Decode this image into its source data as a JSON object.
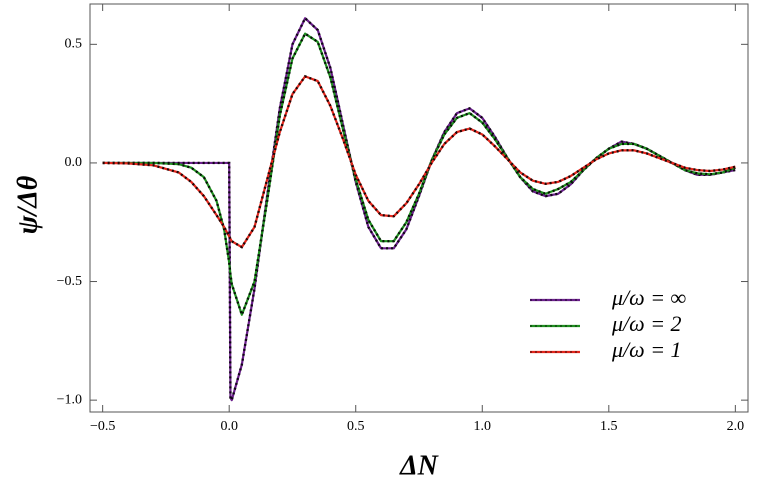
{
  "chart_data": {
    "type": "line",
    "xlabel": "ΔN",
    "ylabel": "ψ/Δθ",
    "xlim": [
      -0.55,
      2.05
    ],
    "ylim": [
      -1.05,
      0.67
    ],
    "xticks": [
      {
        "value": -0.5,
        "label": "−0.5"
      },
      {
        "value": 0,
        "label": "0.0"
      },
      {
        "value": 0.5,
        "label": "0.5"
      },
      {
        "value": 1,
        "label": "1.0"
      },
      {
        "value": 1.5,
        "label": "1.5"
      },
      {
        "value": 2,
        "label": "2.0"
      }
    ],
    "yticks": [
      {
        "value": -1,
        "label": "−1.0"
      },
      {
        "value": -0.5,
        "label": "−0.5"
      },
      {
        "value": 0,
        "label": "0.0"
      },
      {
        "value": 0.5,
        "label": "0.5"
      }
    ],
    "legend_position": "lower right",
    "overlay_dashed": true,
    "x": [
      -0.5,
      -0.4,
      -0.3,
      -0.2,
      -0.15,
      -0.1,
      -0.05,
      -0.02,
      0,
      0.005,
      0.01,
      0.05,
      0.1,
      0.15,
      0.2,
      0.25,
      0.3,
      0.35,
      0.4,
      0.45,
      0.5,
      0.55,
      0.6,
      0.65,
      0.7,
      0.75,
      0.8,
      0.85,
      0.9,
      0.95,
      1.0,
      1.05,
      1.1,
      1.15,
      1.2,
      1.25,
      1.3,
      1.35,
      1.4,
      1.45,
      1.5,
      1.55,
      1.6,
      1.65,
      1.7,
      1.75,
      1.8,
      1.85,
      1.9,
      1.95,
      2.0
    ],
    "series": [
      {
        "name": "μ/ω = ∞",
        "color": "#6b1f8c",
        "values": [
          0,
          0,
          0,
          0,
          0,
          0,
          0,
          0,
          0,
          -0.99,
          -1.0,
          -0.85,
          -0.53,
          -0.14,
          0.23,
          0.5,
          0.61,
          0.56,
          0.4,
          0.16,
          -0.08,
          -0.27,
          -0.36,
          -0.36,
          -0.28,
          -0.14,
          0.01,
          0.13,
          0.21,
          0.23,
          0.19,
          0.11,
          0.02,
          -0.06,
          -0.12,
          -0.14,
          -0.13,
          -0.09,
          -0.03,
          0.02,
          0.06,
          0.09,
          0.08,
          0.06,
          0.03,
          0,
          -0.03,
          -0.05,
          -0.05,
          -0.04,
          -0.03
        ]
      },
      {
        "name": "μ/ω = 2",
        "color": "#1f8f1f",
        "values": [
          0,
          0,
          0,
          -0.005,
          -0.02,
          -0.06,
          -0.16,
          -0.28,
          -0.42,
          -0.47,
          -0.51,
          -0.64,
          -0.5,
          -0.16,
          0.2,
          0.44,
          0.545,
          0.51,
          0.36,
          0.14,
          -0.07,
          -0.24,
          -0.33,
          -0.33,
          -0.25,
          -0.13,
          0.01,
          0.12,
          0.19,
          0.21,
          0.17,
          0.1,
          0.02,
          -0.06,
          -0.11,
          -0.13,
          -0.11,
          -0.08,
          -0.03,
          0.02,
          0.06,
          0.08,
          0.08,
          0.06,
          0.03,
          0,
          -0.03,
          -0.044,
          -0.048,
          -0.04,
          -0.02
        ]
      },
      {
        "name": "μ/ω = 1",
        "color": "#e3261c",
        "values": [
          0,
          -0.002,
          -0.01,
          -0.04,
          -0.08,
          -0.14,
          -0.22,
          -0.27,
          -0.31,
          -0.32,
          -0.33,
          -0.355,
          -0.27,
          -0.07,
          0.13,
          0.29,
          0.365,
          0.345,
          0.24,
          0.1,
          -0.05,
          -0.16,
          -0.22,
          -0.225,
          -0.17,
          -0.09,
          0,
          0.08,
          0.13,
          0.145,
          0.12,
          0.07,
          0.015,
          -0.04,
          -0.075,
          -0.088,
          -0.08,
          -0.055,
          -0.02,
          0.015,
          0.04,
          0.053,
          0.053,
          0.04,
          0.02,
          0,
          -0.02,
          -0.03,
          -0.034,
          -0.028,
          -0.016
        ]
      }
    ]
  }
}
